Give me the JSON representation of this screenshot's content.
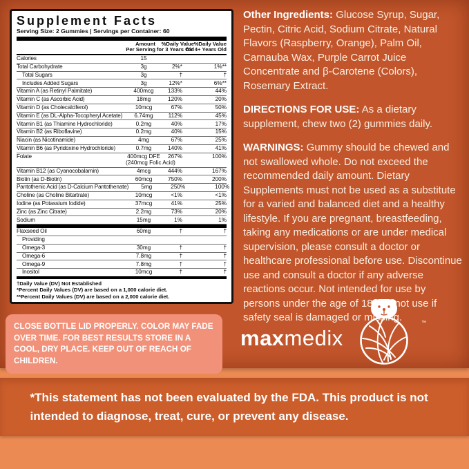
{
  "supplement_facts": {
    "title": "Supplement Facts",
    "serving_size_line": "Serving Size: 2 Gummies  |  Servings per Container: 60",
    "columns": {
      "amount": "Amount\nPer Serving",
      "dv_3yr": "%Daily Value\nfor 3 Years Old",
      "dv_4yr": "%Daily Value\nfor 4+ Years Old"
    },
    "rows": [
      {
        "name": "Calories",
        "amount": "15",
        "dv3": "",
        "dv4": ""
      },
      {
        "name": "Total Carbohydrate",
        "amount": "3g",
        "dv3": "2%*",
        "dv4": "1%**"
      },
      {
        "name": "Total Sugars",
        "amount": "3g",
        "dv3": "†",
        "dv4": "†",
        "indent": true
      },
      {
        "name": "Includes Added Sugars",
        "amount": "3g",
        "dv3": "12%*",
        "dv4": "6%**",
        "indent": true
      },
      {
        "name": "Vitamin A (as Retinyl Palmitate)",
        "amount": "400mcg",
        "dv3": "133%",
        "dv4": "44%"
      },
      {
        "name": "Vitamin C (as Ascorbic Acid)",
        "amount": "18mg",
        "dv3": "120%",
        "dv4": "20%"
      },
      {
        "name": "Vitamin D (as Cholecalciferol)",
        "amount": "10mcg",
        "dv3": "67%",
        "dv4": "50%"
      },
      {
        "name": "Vitamin E (as DL-Alpha-Tocopheryl Acetate)",
        "amount": "6.74mg",
        "dv3": "112%",
        "dv4": "45%"
      },
      {
        "name": "Vitamin B1 (as Thiamine Hydrochloride)",
        "amount": "0.2mg",
        "dv3": "40%",
        "dv4": "17%"
      },
      {
        "name": "Vitamin B2 (as Riboflavine)",
        "amount": "0.2mg",
        "dv3": "40%",
        "dv4": "15%"
      },
      {
        "name": "Niacin (as Nicotinamide)",
        "amount": "4mg",
        "dv3": "67%",
        "dv4": "25%"
      },
      {
        "name": "Vitamin B6 (as Pyridoxine Hydrochloride)",
        "amount": "0.7mg",
        "dv3": "140%",
        "dv4": "41%"
      },
      {
        "name": "Folate",
        "amount": "400mcg DFE",
        "amount2": "(240mcg Folic Acid)",
        "dv3": "267%",
        "dv4": "100%"
      },
      {
        "name": "Vitamin B12 (as Cyanocobalamin)",
        "amount": "4mcg",
        "dv3": "444%",
        "dv4": "167%"
      },
      {
        "name": "Biotin (as D-Biotin)",
        "amount": "60mcg",
        "dv3": "750%",
        "dv4": "200%"
      },
      {
        "name": "Pantothenic Acid (as D-Calcium Pantothenate)",
        "amount": "5mg",
        "dv3": "250%",
        "dv4": "100%"
      },
      {
        "name": "Choline (as Choline Bitartrate)",
        "amount": "10mcg",
        "dv3": "<1%",
        "dv4": "<1%"
      },
      {
        "name": "Iodine (as Potassium Iodide)",
        "amount": "37mcg",
        "dv3": "41%",
        "dv4": "25%"
      },
      {
        "name": "Zinc (as Zinc Citrate)",
        "amount": "2.2mg",
        "dv3": "73%",
        "dv4": "20%"
      },
      {
        "name": "Sodium",
        "amount": "15mg",
        "dv3": "1%",
        "dv4": "1%",
        "thick_after": true
      },
      {
        "name": "Flaxseed Oil",
        "amount": "60mg",
        "dv3": "†",
        "dv4": "†"
      },
      {
        "name": "Providing",
        "amount": "",
        "dv3": "",
        "dv4": "",
        "indent": true
      },
      {
        "name": "Omega-3",
        "amount": "30mg",
        "dv3": "†",
        "dv4": "†",
        "indent": true
      },
      {
        "name": "Omega-6",
        "amount": "7.8mg",
        "dv3": "†",
        "dv4": "†",
        "indent": true
      },
      {
        "name": "Omega-9",
        "amount": "7.8mg",
        "dv3": "†",
        "dv4": "†",
        "indent": true
      },
      {
        "name": "Inositol",
        "amount": "10mcg",
        "dv3": "†",
        "dv4": "†",
        "indent": true
      }
    ],
    "footnotes": [
      "†Daily Value (DV) Not Established",
      "*Percent Daily Values (DV) are based on a 1,000 calorie diet.",
      "**Percent Daily Values (DV) are based on a 2,000 calorie diet."
    ]
  },
  "right_column": {
    "other_ingredients": {
      "label": "Other Ingredients:",
      "text": "Glucose Syrup, Sugar, Pectin, Citric Acid, Sodium Citrate, Natural Flavors (Raspberry, Orange), Palm Oil, Carnauba Wax, Purple Carrot Juice Concentrate and β-Carotene (Colors), Rosemary Extract."
    },
    "directions": {
      "label": "DIRECTIONS FOR USE:",
      "text": "As a dietary supplement, chew two (2) gummies daily."
    },
    "warnings": {
      "label": "WARNINGS:",
      "text": "Gummy should be chewed and not swallowed whole. Do not exceed the recommended daily amount. Dietary Supplements must not be used as a substitute for a varied and balanced diet and a healthy lifestyle. If you are pregnant, breastfeeding, taking any medications or are under medical supervision, please consult a doctor or healthcare professional before use. Discontinue use and consult a doctor if any adverse reactions occur. Not intended for use by persons under the age of 18. Do not use if safety seal is damaged or missing."
    }
  },
  "storage_notice": "CLOSE BOTTLE LID PROPERLY. COLOR MAY FADE OVER TIME. FOR BEST RESULTS STORE IN A COOL, DRY PLACE. KEEP OUT OF REACH OF CHILDREN.",
  "brand": {
    "name_part_bold": "max",
    "name_part_light": "medix",
    "trademark": "™"
  },
  "fda_disclaimer": "*This statement has not been evaluated by the FDA. This product is not intended to diagnose, treat, cure, or prevent any disease.",
  "colors": {
    "label_background": "#C2552B",
    "page_background": "#EC8A53",
    "banner_background": "#CC5E2C",
    "storage_box_background": "#F19179",
    "panel_background": "#FFFFFF",
    "panel_text": "#0D0D0D",
    "light_text": "#FFFFFF"
  }
}
